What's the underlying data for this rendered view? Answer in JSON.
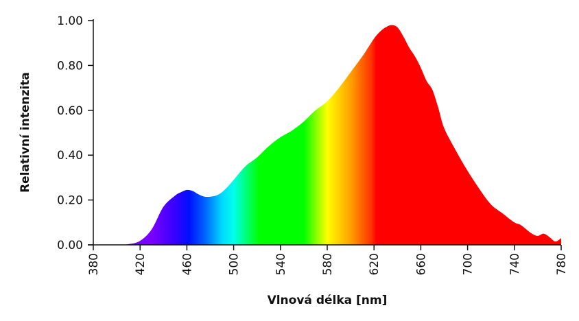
{
  "chart_data": {
    "type": "area",
    "title": "",
    "xlabel": "Vlnová délka [nm]",
    "ylabel": "Relativní intenzita",
    "xlim": [
      380,
      780
    ],
    "ylim": [
      0,
      1.0
    ],
    "x_ticks": [
      "380",
      "420",
      "460",
      "500",
      "540",
      "580",
      "620",
      "660",
      "700",
      "740",
      "780"
    ],
    "y_ticks": [
      "0.00",
      "0.20",
      "0.40",
      "0.60",
      "0.80",
      "1.00"
    ],
    "grid": false,
    "fill": "visible spectrum color gradient (violet to red)",
    "series": [
      {
        "x": [
          380,
          400,
          410,
          420,
          430,
          440,
          450,
          455,
          460,
          465,
          470,
          475,
          480,
          485,
          490,
          495,
          500,
          510,
          520,
          530,
          540,
          550,
          560,
          570,
          580,
          590,
          600,
          610,
          615,
          620,
          625,
          630,
          635,
          640,
          645,
          650,
          655,
          660,
          665,
          670,
          675,
          680,
          690,
          700,
          710,
          720,
          730,
          740,
          745,
          750,
          755,
          760,
          765,
          770,
          775,
          780
        ],
        "y": [
          0.0,
          0.0,
          0.003,
          0.018,
          0.07,
          0.17,
          0.22,
          0.235,
          0.245,
          0.24,
          0.225,
          0.215,
          0.215,
          0.22,
          0.235,
          0.26,
          0.29,
          0.35,
          0.39,
          0.44,
          0.48,
          0.51,
          0.55,
          0.6,
          0.64,
          0.7,
          0.77,
          0.84,
          0.88,
          0.92,
          0.95,
          0.97,
          0.98,
          0.97,
          0.93,
          0.88,
          0.84,
          0.79,
          0.73,
          0.69,
          0.61,
          0.52,
          0.42,
          0.33,
          0.25,
          0.18,
          0.14,
          0.1,
          0.09,
          0.07,
          0.05,
          0.04,
          0.05,
          0.035,
          0.015,
          0.03
        ]
      }
    ]
  },
  "colors": {
    "spectrum_stops": [
      {
        "nm": 380,
        "color": "#5a00ff"
      },
      {
        "nm": 430,
        "color": "#7a00ff"
      },
      {
        "nm": 450,
        "color": "#3500ff"
      },
      {
        "nm": 462,
        "color": "#0010ff"
      },
      {
        "nm": 475,
        "color": "#0060ff"
      },
      {
        "nm": 490,
        "color": "#00d8ff"
      },
      {
        "nm": 500,
        "color": "#00ffea"
      },
      {
        "nm": 510,
        "color": "#00ff80"
      },
      {
        "nm": 522,
        "color": "#00ff00"
      },
      {
        "nm": 560,
        "color": "#00ff00"
      },
      {
        "nm": 580,
        "color": "#ffff00"
      },
      {
        "nm": 600,
        "color": "#ffa000"
      },
      {
        "nm": 618,
        "color": "#ff3000"
      },
      {
        "nm": 622,
        "color": "#ff0000"
      },
      {
        "nm": 780,
        "color": "#ff0000"
      }
    ],
    "axis": "#111111"
  }
}
